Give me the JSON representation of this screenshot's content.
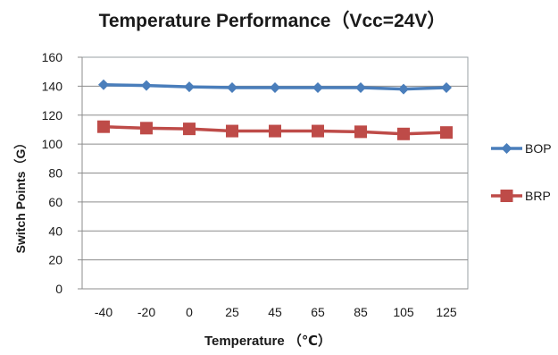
{
  "chart_data": {
    "type": "line",
    "title": "Temperature Performance（Vcc=24V）",
    "xlabel": "Temperature （℃）",
    "ylabel": "Switch Points（G）",
    "categories": [
      "-40",
      "-20",
      "0",
      "25",
      "45",
      "65",
      "85",
      "105",
      "125"
    ],
    "ylim": [
      0,
      160
    ],
    "yticks": [
      0,
      20,
      40,
      60,
      80,
      100,
      120,
      140,
      160
    ],
    "grid": true,
    "legend_position": "right",
    "series": [
      {
        "name": "BOP",
        "marker": "diamond",
        "color": "#4a7ebb",
        "values": [
          141,
          140.5,
          139.5,
          139,
          139,
          139,
          139,
          138,
          139
        ]
      },
      {
        "name": "BRP",
        "marker": "square",
        "color": "#be4b48",
        "values": [
          112,
          111,
          110.5,
          109,
          109,
          109,
          108.5,
          107,
          108
        ]
      }
    ]
  }
}
